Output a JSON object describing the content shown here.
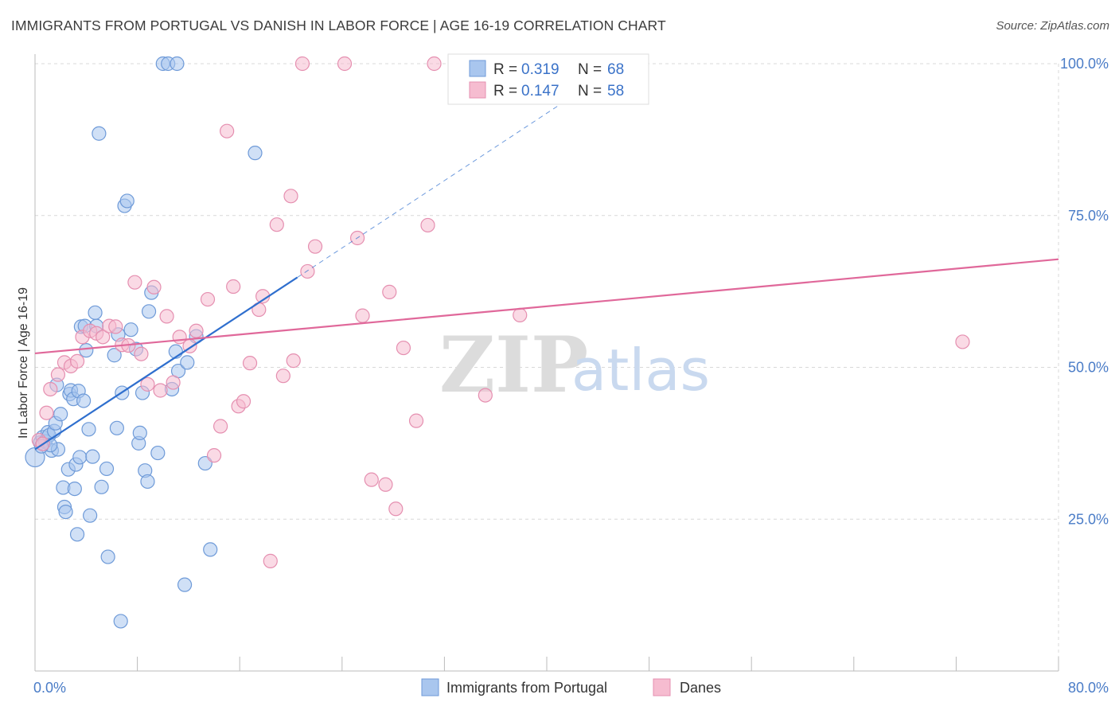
{
  "title": "IMMIGRANTS FROM PORTUGAL VS DANISH IN LABOR FORCE | AGE 16-19 CORRELATION CHART",
  "source": "Source: ZipAtlas.com",
  "watermark": {
    "zip": "ZIP",
    "atlas": "atlas"
  },
  "colors": {
    "blue_fill": "#a9c6ee",
    "blue_stroke": "#6e9ad8",
    "blue_line": "#2f6fce",
    "pink_fill": "#f6bcd0",
    "pink_stroke": "#e58fb0",
    "pink_line": "#e0689a",
    "grid": "#d8d8d8",
    "tick_text": "#4a7cc7"
  },
  "legend": {
    "rows": [
      {
        "r_label": "R = ",
        "r_value": "0.319",
        "n_label": "N = ",
        "n_value": "68"
      },
      {
        "r_label": "R = ",
        "r_value": "0.147",
        "n_label": "N = ",
        "n_value": "58"
      }
    ]
  },
  "chart_data": {
    "type": "scatter",
    "title": "IMMIGRANTS FROM PORTUGAL VS DANISH IN LABOR FORCE | AGE 16-19 CORRELATION CHART",
    "xlabel": "",
    "ylabel": "In Labor Force | Age 16-19",
    "xlim": [
      0,
      80
    ],
    "ylim": [
      0,
      100
    ],
    "x_tick_labels": [
      "0.0%",
      "80.0%"
    ],
    "y_ticks": [
      25,
      50,
      75,
      100
    ],
    "y_tick_labels": [
      "25.0%",
      "50.0%",
      "75.0%",
      "100.0%"
    ],
    "grid": true,
    "legend_position": "bottom",
    "series": [
      {
        "name": "Immigrants from Portugal",
        "color": "blue",
        "R": 0.319,
        "N": 68,
        "trend": {
          "x0": 0,
          "y0": 36.5,
          "x1": 20.5,
          "y1": 64.8,
          "dash_to_x": 43,
          "dash_to_y": 96
        },
        "points": [
          [
            0.0,
            35.2
          ],
          [
            0.4,
            37.6
          ],
          [
            0.6,
            38.5
          ],
          [
            0.8,
            37.8
          ],
          [
            1.0,
            39.3
          ],
          [
            1.1,
            38.8
          ],
          [
            1.3,
            36.3
          ],
          [
            1.5,
            39.5
          ],
          [
            1.6,
            40.8
          ],
          [
            1.7,
            47.1
          ],
          [
            1.8,
            36.5
          ],
          [
            2.0,
            42.3
          ],
          [
            2.2,
            30.2
          ],
          [
            2.3,
            27.0
          ],
          [
            2.4,
            26.2
          ],
          [
            2.6,
            33.2
          ],
          [
            2.7,
            45.6
          ],
          [
            2.8,
            46.2
          ],
          [
            3.0,
            44.8
          ],
          [
            3.1,
            30.0
          ],
          [
            3.2,
            34.0
          ],
          [
            3.3,
            22.5
          ],
          [
            3.4,
            46.1
          ],
          [
            3.5,
            35.2
          ],
          [
            3.6,
            56.7
          ],
          [
            3.8,
            44.5
          ],
          [
            3.9,
            56.8
          ],
          [
            4.0,
            52.8
          ],
          [
            4.2,
            39.8
          ],
          [
            4.3,
            25.6
          ],
          [
            4.5,
            35.3
          ],
          [
            4.7,
            59.0
          ],
          [
            4.8,
            56.8
          ],
          [
            5.0,
            88.5
          ],
          [
            5.2,
            30.3
          ],
          [
            5.6,
            33.3
          ],
          [
            5.7,
            18.8
          ],
          [
            6.2,
            52.0
          ],
          [
            6.5,
            55.4
          ],
          [
            6.7,
            8.2
          ],
          [
            6.8,
            45.8
          ],
          [
            7.0,
            76.6
          ],
          [
            7.2,
            77.4
          ],
          [
            7.5,
            56.2
          ],
          [
            7.9,
            53.0
          ],
          [
            8.1,
            37.5
          ],
          [
            8.2,
            39.2
          ],
          [
            8.4,
            45.8
          ],
          [
            8.6,
            33.0
          ],
          [
            8.8,
            31.2
          ],
          [
            8.9,
            59.2
          ],
          [
            9.1,
            62.3
          ],
          [
            9.6,
            35.9
          ],
          [
            10.0,
            100.0
          ],
          [
            10.4,
            100.0
          ],
          [
            10.7,
            46.4
          ],
          [
            11.0,
            52.6
          ],
          [
            11.1,
            100.0
          ],
          [
            11.2,
            49.4
          ],
          [
            11.7,
            14.2
          ],
          [
            11.9,
            50.8
          ],
          [
            12.6,
            55.1
          ],
          [
            13.3,
            34.2
          ],
          [
            13.7,
            20.0
          ],
          [
            17.2,
            85.3
          ],
          [
            6.4,
            40.0
          ],
          [
            1.2,
            37.2
          ],
          [
            0.5,
            37.0
          ]
        ]
      },
      {
        "name": "Danes",
        "color": "pink",
        "R": 0.147,
        "N": 58,
        "trend": {
          "x0": 0,
          "y0": 52.3,
          "x1": 80,
          "y1": 67.8
        },
        "points": [
          [
            0.3,
            38.0
          ],
          [
            0.6,
            37.4
          ],
          [
            0.9,
            42.5
          ],
          [
            1.2,
            46.4
          ],
          [
            1.8,
            48.8
          ],
          [
            2.3,
            50.8
          ],
          [
            2.8,
            50.2
          ],
          [
            3.3,
            51.0
          ],
          [
            3.7,
            55.0
          ],
          [
            4.3,
            56.0
          ],
          [
            4.8,
            55.6
          ],
          [
            5.3,
            55.0
          ],
          [
            5.8,
            56.8
          ],
          [
            6.3,
            56.7
          ],
          [
            6.8,
            53.7
          ],
          [
            7.3,
            53.6
          ],
          [
            7.8,
            64.0
          ],
          [
            8.3,
            52.2
          ],
          [
            8.8,
            47.2
          ],
          [
            9.3,
            63.2
          ],
          [
            9.8,
            46.2
          ],
          [
            10.3,
            58.4
          ],
          [
            10.8,
            47.5
          ],
          [
            11.3,
            55.0
          ],
          [
            12.1,
            53.5
          ],
          [
            12.6,
            56.0
          ],
          [
            13.5,
            61.2
          ],
          [
            14.0,
            35.5
          ],
          [
            14.5,
            40.3
          ],
          [
            15.0,
            88.9
          ],
          [
            15.5,
            63.3
          ],
          [
            15.9,
            43.6
          ],
          [
            16.3,
            44.4
          ],
          [
            16.8,
            50.7
          ],
          [
            17.5,
            59.5
          ],
          [
            17.8,
            61.7
          ],
          [
            18.4,
            18.1
          ],
          [
            18.9,
            73.5
          ],
          [
            19.4,
            48.6
          ],
          [
            20.0,
            78.2
          ],
          [
            20.2,
            51.1
          ],
          [
            20.9,
            100.0
          ],
          [
            21.3,
            65.8
          ],
          [
            21.9,
            69.9
          ],
          [
            24.2,
            100.0
          ],
          [
            25.2,
            71.3
          ],
          [
            25.6,
            58.5
          ],
          [
            26.3,
            31.5
          ],
          [
            27.4,
            30.7
          ],
          [
            27.7,
            62.4
          ],
          [
            28.2,
            26.7
          ],
          [
            28.8,
            53.2
          ],
          [
            29.8,
            41.2
          ],
          [
            30.7,
            73.4
          ],
          [
            31.2,
            100.0
          ],
          [
            35.2,
            45.4
          ],
          [
            37.9,
            58.6
          ],
          [
            72.5,
            54.2
          ]
        ]
      }
    ]
  }
}
